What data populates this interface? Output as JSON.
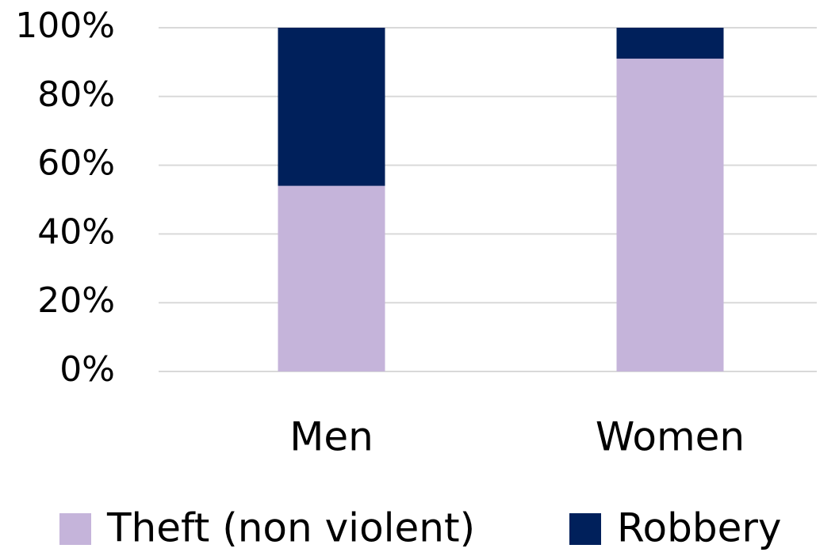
{
  "chart_data": {
    "type": "stacked_bar",
    "categories": [
      "Men",
      "Women"
    ],
    "series": [
      {
        "name": "Theft (non violent)",
        "color": "#c5b4da",
        "values": [
          54,
          91
        ]
      },
      {
        "name": "Robbery",
        "color": "#00205b",
        "values": [
          46,
          9
        ]
      }
    ],
    "ylim": [
      0,
      100
    ],
    "yticks": [
      {
        "value": 0,
        "label": "0%"
      },
      {
        "value": 20,
        "label": "20%"
      },
      {
        "value": 40,
        "label": "40%"
      },
      {
        "value": 60,
        "label": "60%"
      },
      {
        "value": 80,
        "label": "80%"
      },
      {
        "value": 100,
        "label": "100%"
      }
    ],
    "grid": true,
    "legend": "bottom"
  }
}
